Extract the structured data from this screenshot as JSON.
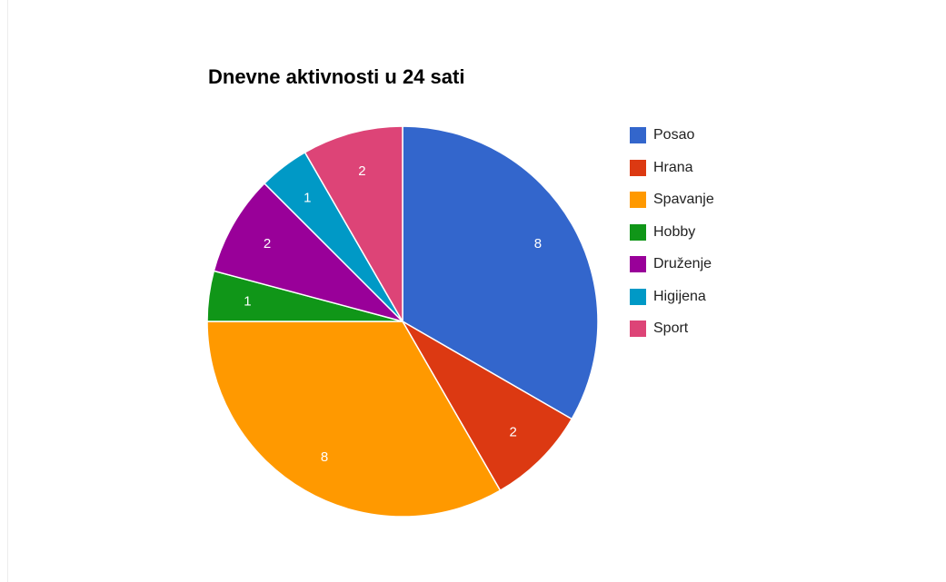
{
  "chart_data": {
    "type": "pie",
    "title": "Dnevne aktivnosti u 24 sati",
    "categories": [
      "Posao",
      "Hrana",
      "Spavanje",
      "Hobby",
      "Druženje",
      "Higijena",
      "Sport"
    ],
    "values": [
      8,
      2,
      8,
      1,
      2,
      1,
      2
    ],
    "colors": [
      "#3366cc",
      "#dc3912",
      "#ff9900",
      "#109618",
      "#990099",
      "#0099c6",
      "#dd4477"
    ],
    "slice_labels": [
      "8",
      "2",
      "8",
      "1",
      "2",
      "1",
      "2"
    ],
    "start_angle_deg": 0,
    "direction": "clockwise",
    "legend_position": "right"
  }
}
